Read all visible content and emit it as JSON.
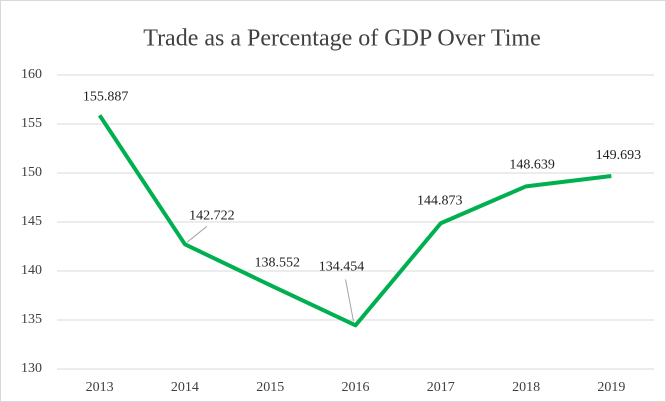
{
  "chart_data": {
    "type": "line",
    "title": "Trade as a Percentage of GDP Over Time",
    "categories": [
      "2013",
      "2014",
      "2015",
      "2016",
      "2017",
      "2018",
      "2019"
    ],
    "values": [
      155.887,
      142.722,
      138.552,
      134.454,
      144.873,
      148.639,
      149.693
    ],
    "color": "#00b050",
    "ylim": [
      130,
      160
    ],
    "yticks": [
      130,
      135,
      140,
      145,
      150,
      155,
      160
    ],
    "grid": true
  }
}
